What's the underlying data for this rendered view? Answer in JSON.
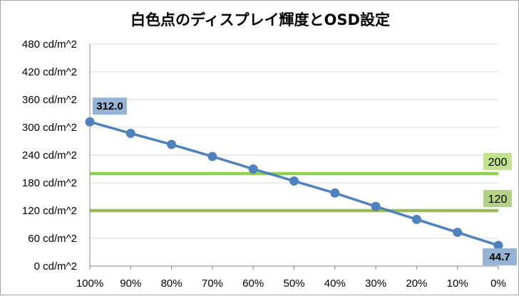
{
  "colors": {
    "series": "#4f81bd",
    "ref_high": "#92d050",
    "ref_low": "#9bbb59",
    "label_box_series": "#95b3d7",
    "label_box_ref_high": "#c3e28f",
    "label_box_ref_low": "#b4cf86",
    "gridline": "#d9d9d9",
    "axis": "#868686"
  },
  "chart_data": {
    "type": "line",
    "title": "白色点のディスプレイ輝度とOSD設定",
    "xlabel": "",
    "ylabel": "",
    "categories": [
      "100%",
      "90%",
      "80%",
      "70%",
      "60%",
      "50%",
      "40%",
      "30%",
      "20%",
      "10%",
      "0%"
    ],
    "y_tick_labels": [
      "0 cd/m^2",
      "60 cd/m^2",
      "120 cd/m^2",
      "180 cd/m^2",
      "240 cd/m^2",
      "300 cd/m^2",
      "360 cd/m^2",
      "420 cd/m^2",
      "480 cd/m^2"
    ],
    "ylim": [
      0,
      480
    ],
    "y_step": 60,
    "grid": "horizontal",
    "series": [
      {
        "values": [
          312.0,
          287,
          263,
          237,
          210,
          184,
          158,
          129,
          101,
          73,
          44.7
        ],
        "data_labels": [
          {
            "index": 0,
            "text": "312.0"
          },
          {
            "index": 10,
            "text": "44.7"
          }
        ]
      }
    ],
    "reference_lines": [
      {
        "value": 200,
        "label": "200"
      },
      {
        "value": 120,
        "label": "120"
      }
    ]
  }
}
